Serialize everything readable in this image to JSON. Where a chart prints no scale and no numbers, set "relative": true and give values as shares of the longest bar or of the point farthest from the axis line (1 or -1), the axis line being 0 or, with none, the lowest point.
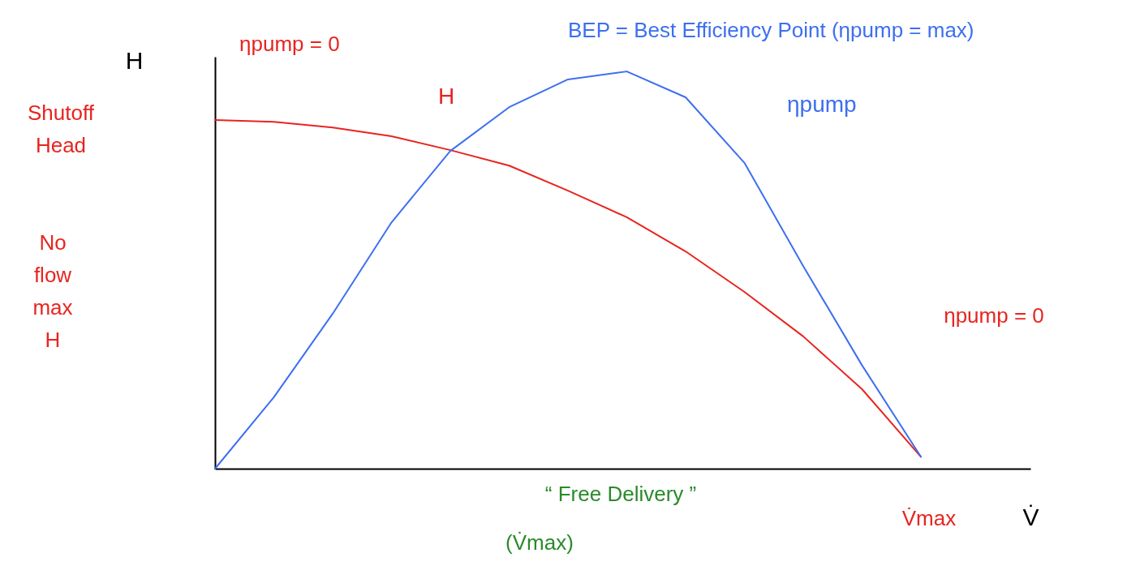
{
  "chart_data": {
    "type": "line",
    "relative": true,
    "legend": false,
    "xlabel": "V̇",
    "ylabel": "H",
    "categories": [
      null,
      null,
      null,
      null,
      null,
      null,
      null,
      null,
      null,
      null,
      null,
      null,
      null
    ],
    "series": [
      {
        "name": "H",
        "color": "#e8241f",
        "values": [
          0.878,
          0.873,
          0.859,
          0.837,
          0.802,
          0.763,
          0.7,
          0.633,
          0.547,
          0.445,
          0.333,
          0.2,
          0.03
        ]
      },
      {
        "name": "ηpump",
        "color": "#3d6ff0",
        "values": [
          0,
          0.18,
          0.39,
          0.62,
          0.8,
          0.91,
          0.98,
          1,
          0.935,
          0.77,
          0.51,
          0.26,
          0.03
        ]
      }
    ],
    "annotations": [
      "BEP = Best Efficiency Point (ηpump = max)",
      "ηpump = 0",
      "Shutoff Head",
      "No flow max H",
      "ηpump = 0",
      "“ Free Delivery ”",
      "(V̇max)",
      "V̇max"
    ]
  }
}
